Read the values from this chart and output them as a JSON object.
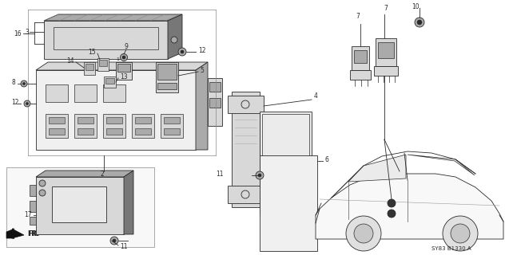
{
  "bg_color": "#ffffff",
  "diagram_code": "SY83 B1330 A",
  "line_color": "#2a2a2a",
  "gray_light": "#d8d8d8",
  "gray_mid": "#aaaaaa",
  "gray_dark": "#777777"
}
